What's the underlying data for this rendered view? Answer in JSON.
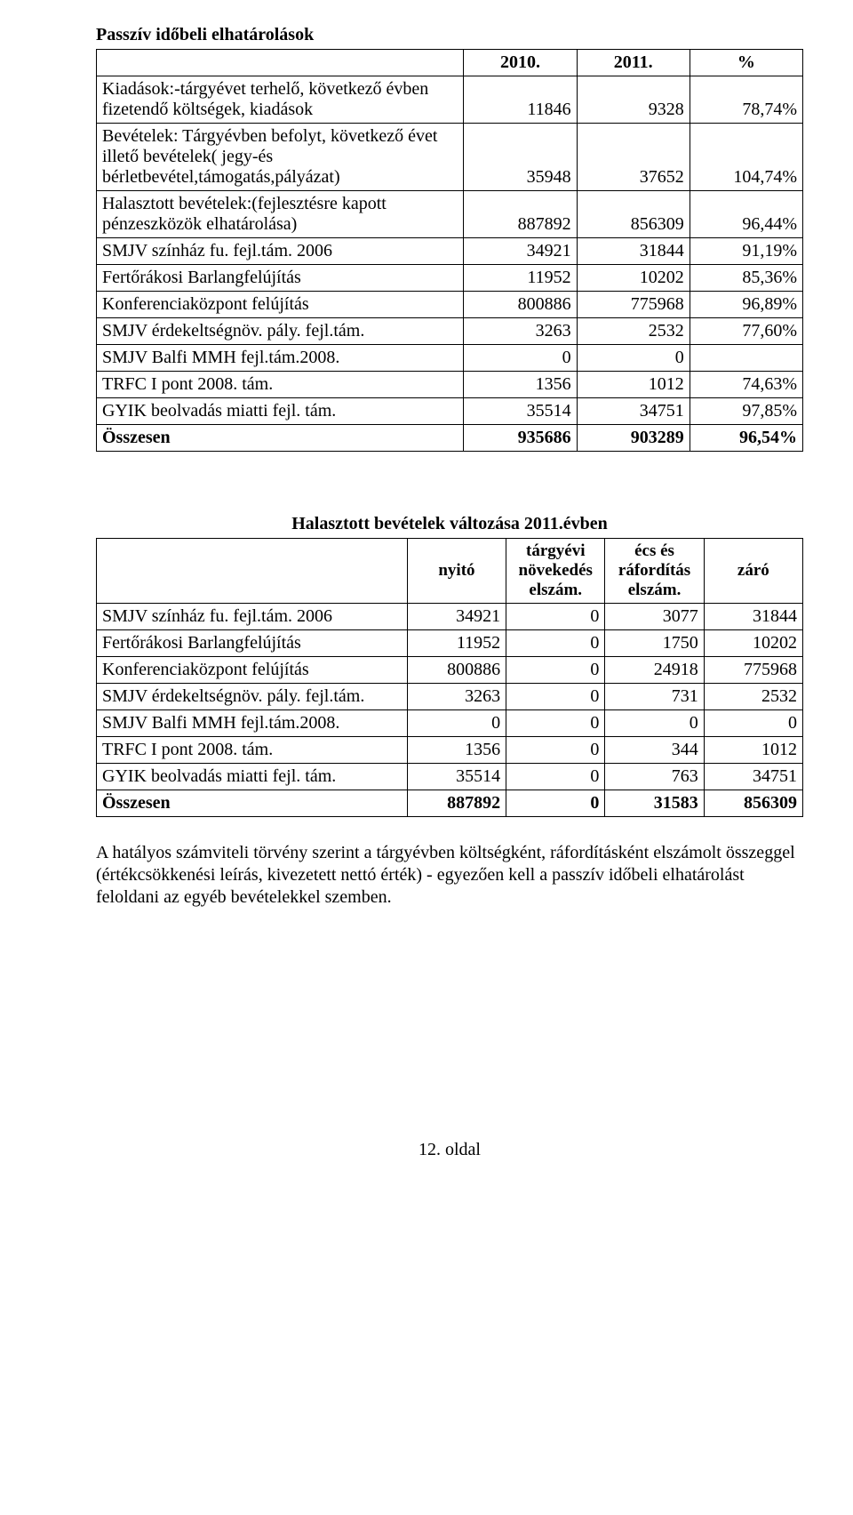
{
  "title1": "Passzív időbeli elhatárolások",
  "table1": {
    "headers": [
      "2010.",
      "2011.",
      "%"
    ],
    "rows": [
      {
        "label": "Kiadások:-tárgyévet terhelő, következő évben fizetendő költségek, kiadások",
        "a": "11846",
        "b": "9328",
        "pct": "78,74%"
      },
      {
        "label": "Bevételek: Tárgyévben befolyt, következő évet illető bevételek( jegy-és bérletbevétel,támogatás,pályázat)",
        "a": "35948",
        "b": "37652",
        "pct": "104,74%"
      },
      {
        "label": "Halasztott bevételek:(fejlesztésre kapott pénzeszközök elhatárolása)",
        "a": "887892",
        "b": "856309",
        "pct": "96,44%"
      },
      {
        "label": "SMJV színház fu. fejl.tám. 2006",
        "a": "34921",
        "b": "31844",
        "pct": "91,19%"
      },
      {
        "label": "Fertőrákosi Barlangfelújítás",
        "a": "11952",
        "b": "10202",
        "pct": "85,36%"
      },
      {
        "label": "Konferenciaközpont felújítás",
        "a": "800886",
        "b": "775968",
        "pct": "96,89%"
      },
      {
        "label": "SMJV érdekeltségnöv. pály. fejl.tám.",
        "a": "3263",
        "b": "2532",
        "pct": "77,60%"
      },
      {
        "label": "SMJV Balfi MMH fejl.tám.2008.",
        "a": "0",
        "b": "0",
        "pct": ""
      },
      {
        "label": "TRFC I pont 2008. tám.",
        "a": "1356",
        "b": "1012",
        "pct": "74,63%"
      },
      {
        "label": "GYIK beolvadás miatti fejl. tám.",
        "a": "35514",
        "b": "34751",
        "pct": "97,85%"
      },
      {
        "label": "Összesen",
        "a": "935686",
        "b": "903289",
        "pct": "96,54%"
      }
    ]
  },
  "title2": "Halasztott bevételek változása 2011.évben",
  "table2": {
    "headers": [
      "nyitó",
      "tárgyévi növekedés elszám.",
      "écs és ráfordítás elszám.",
      "záró"
    ],
    "rows": [
      {
        "label": "SMJV színház fu. fejl.tám. 2006",
        "a": "34921",
        "b": "0",
        "c": "3077",
        "d": "31844"
      },
      {
        "label": "Fertőrákosi Barlangfelújítás",
        "a": "11952",
        "b": "0",
        "c": "1750",
        "d": "10202"
      },
      {
        "label": "Konferenciaközpont felújítás",
        "a": "800886",
        "b": "0",
        "c": "24918",
        "d": "775968"
      },
      {
        "label": "SMJV érdekeltségnöv. pály. fejl.tám.",
        "a": "3263",
        "b": "0",
        "c": "731",
        "d": "2532"
      },
      {
        "label": "SMJV Balfi MMH fejl.tám.2008.",
        "a": "0",
        "b": "0",
        "c": "0",
        "d": "0"
      },
      {
        "label": "TRFC I pont 2008. tám.",
        "a": "1356",
        "b": "0",
        "c": "344",
        "d": "1012"
      },
      {
        "label": "GYIK beolvadás miatti fejl. tám.",
        "a": "35514",
        "b": "0",
        "c": "763",
        "d": "34751"
      },
      {
        "label": "Összesen",
        "a": "887892",
        "b": "0",
        "c": "31583",
        "d": "856309"
      }
    ]
  },
  "paragraph": "A hatályos számviteli törvény szerint a tárgyévben költségként, ráfordításként elszámolt összeggel   (értékcsökkenési leírás, kivezetett nettó érték) - egyezően kell a passzív időbeli elhatárolást feloldani az egyéb bevételekkel szemben.",
  "footer": "12. oldal"
}
